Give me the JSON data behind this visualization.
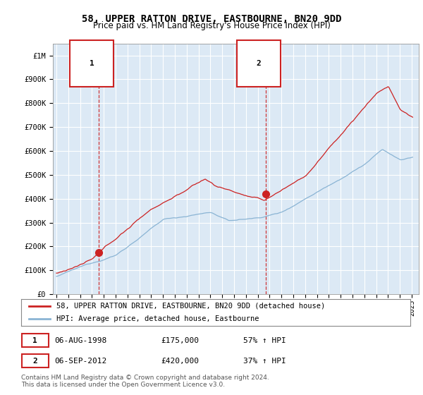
{
  "title": "58, UPPER RATTON DRIVE, EASTBOURNE, BN20 9DD",
  "subtitle": "Price paid vs. HM Land Registry's House Price Index (HPI)",
  "legend_line1": "58, UPPER RATTON DRIVE, EASTBOURNE, BN20 9DD (detached house)",
  "legend_line2": "HPI: Average price, detached house, Eastbourne",
  "footnote": "Contains HM Land Registry data © Crown copyright and database right 2024.\nThis data is licensed under the Open Government Licence v3.0.",
  "transaction1_date": "06-AUG-1998",
  "transaction1_price": "£175,000",
  "transaction1_hpi": "57% ↑ HPI",
  "transaction2_date": "06-SEP-2012",
  "transaction2_price": "£420,000",
  "transaction2_hpi": "37% ↑ HPI",
  "marker1_year": 1998.58,
  "marker1_value": 175000,
  "marker2_year": 2012.67,
  "marker2_value": 420000,
  "vline1_year": 1998.58,
  "vline2_year": 2012.67,
  "hpi_color": "#8ab4d4",
  "price_color": "#cc2222",
  "bg_color": "#dce9f5",
  "ylim": [
    0,
    1050000
  ],
  "yticks": [
    0,
    100000,
    200000,
    300000,
    400000,
    500000,
    600000,
    700000,
    800000,
    900000,
    1000000
  ],
  "ytick_labels": [
    "£0",
    "£100K",
    "£200K",
    "£300K",
    "£400K",
    "£500K",
    "£600K",
    "£700K",
    "£800K",
    "£900K",
    "£1M"
  ],
  "xlim_start": 1994.7,
  "xlim_end": 2025.6,
  "xticks": [
    1995,
    1996,
    1997,
    1998,
    1999,
    2000,
    2001,
    2002,
    2003,
    2004,
    2005,
    2006,
    2007,
    2008,
    2009,
    2010,
    2011,
    2012,
    2013,
    2014,
    2015,
    2016,
    2017,
    2018,
    2019,
    2020,
    2021,
    2022,
    2023,
    2024,
    2025
  ],
  "grid_color": "#ffffff",
  "title_fontsize": 10,
  "subtitle_fontsize": 8.5
}
